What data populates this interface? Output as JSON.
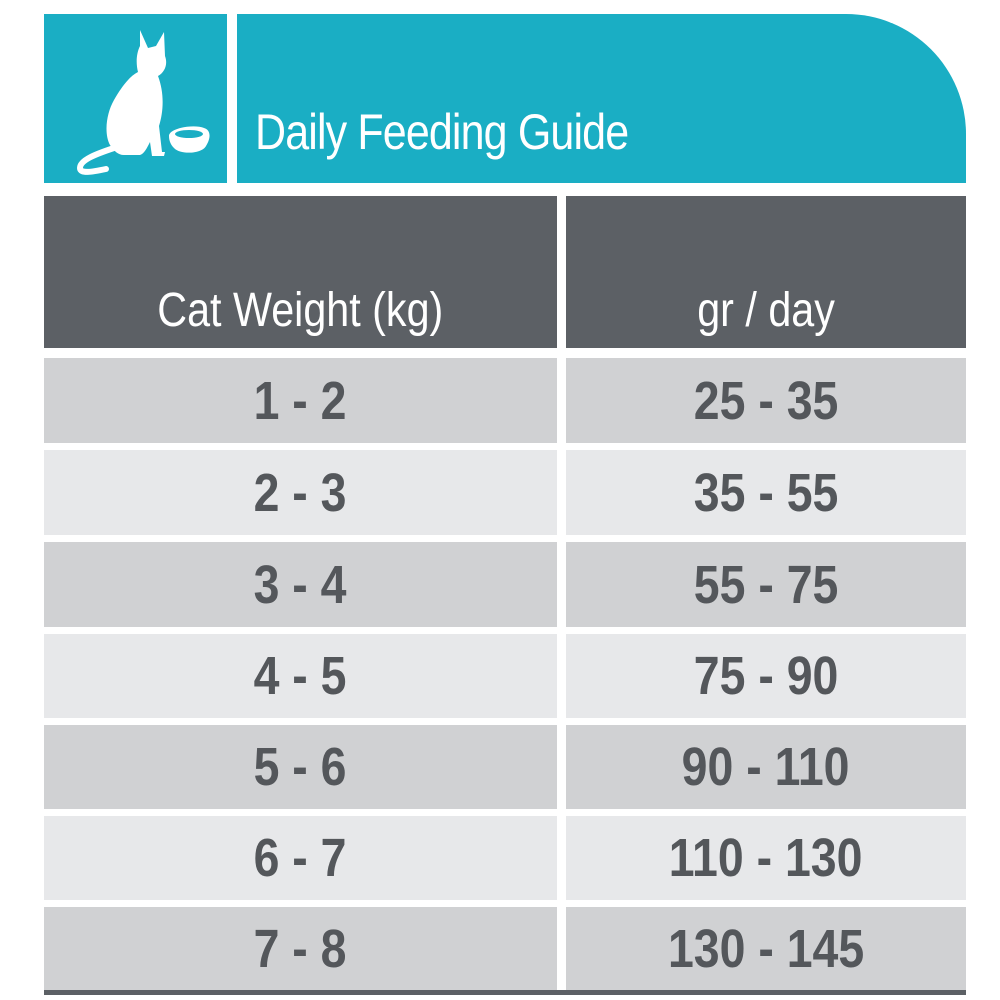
{
  "header": {
    "title": "Daily Feeding Guide",
    "icon": "cat-with-bowl-icon",
    "accent_color": "#1aaec4"
  },
  "table": {
    "columns": [
      "Cat Weight (kg)",
      "gr / day"
    ],
    "header_color": "#5c6065",
    "rows": [
      {
        "weight": "1 - 2",
        "amount": "25 - 35"
      },
      {
        "weight": "2 - 3",
        "amount": "35 - 55"
      },
      {
        "weight": "3 - 4",
        "amount": "55 - 75"
      },
      {
        "weight": "4 - 5",
        "amount": "75 - 90"
      },
      {
        "weight": "5 - 6",
        "amount": "90 - 110"
      },
      {
        "weight": "6 - 7",
        "amount": "110 - 130"
      },
      {
        "weight": "7 - 8",
        "amount": "130 - 145"
      }
    ]
  }
}
